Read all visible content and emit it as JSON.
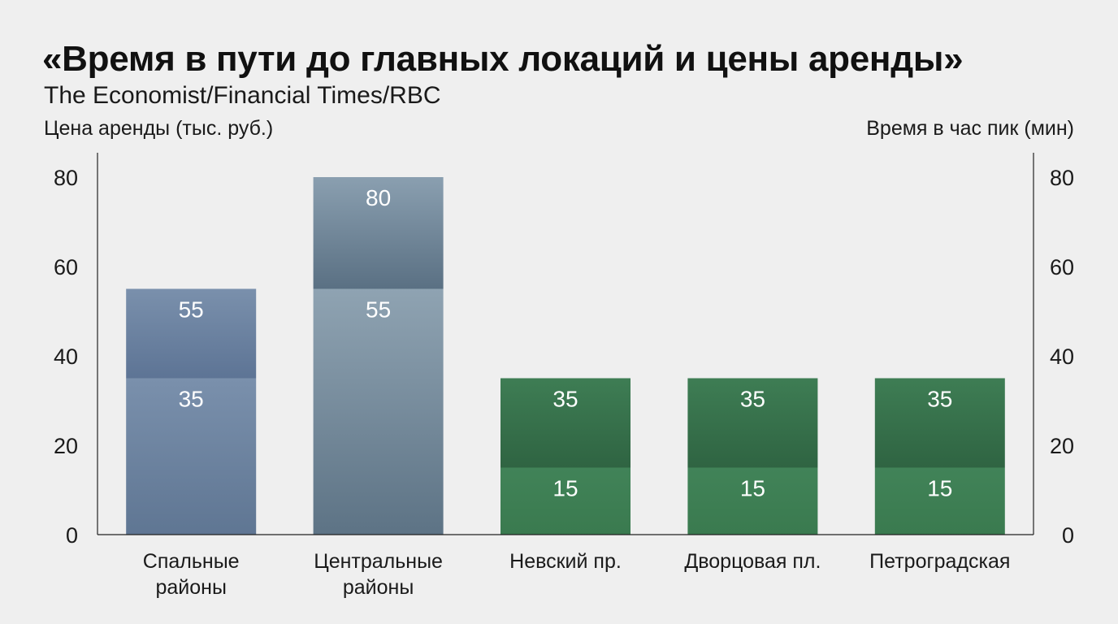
{
  "title": "«Время в пути до главных локаций и цены аренды»",
  "subtitle": "The Economist/Financial Times/RBC",
  "colors": {
    "background": "#efefef",
    "rent_top": "#7a90ac",
    "rent_bottom": "#5f7693",
    "central_top": "#8fa3b2",
    "central_bottom": "#5d7385",
    "green_top": "#3f7e55",
    "green_bottom": "#3a7a4f",
    "axis": "#222222",
    "value_label": "#ffffff"
  },
  "chart_data": {
    "type": "bar",
    "title": "«Время в пути до главных локаций и цены аренды»",
    "subtitle": "The Economist/Financial Times/RBC",
    "ylabel_left": "Цена аренды (тыс. руб.)",
    "ylabel_right": "Время в час пик (мин)",
    "ylim": [
      0,
      80
    ],
    "yticks": [
      0,
      20,
      40,
      60,
      80
    ],
    "grid": false,
    "categories": [
      [
        "Спальные",
        "районы"
      ],
      [
        "Центральные",
        "районы"
      ],
      [
        "Невский пр."
      ],
      [
        "Дворцовая пл."
      ],
      [
        "Петроградская"
      ]
    ],
    "series": [
      {
        "values": [
          55,
          80,
          35,
          35,
          35
        ],
        "labels": [
          "55",
          "80",
          "35",
          "35",
          "35"
        ]
      },
      {
        "values": [
          35,
          55,
          15,
          15,
          15
        ],
        "labels": [
          "35",
          "55",
          "15",
          "15",
          "15"
        ]
      }
    ],
    "bar_groups": [
      "rent",
      "central",
      "green",
      "green",
      "green"
    ]
  }
}
